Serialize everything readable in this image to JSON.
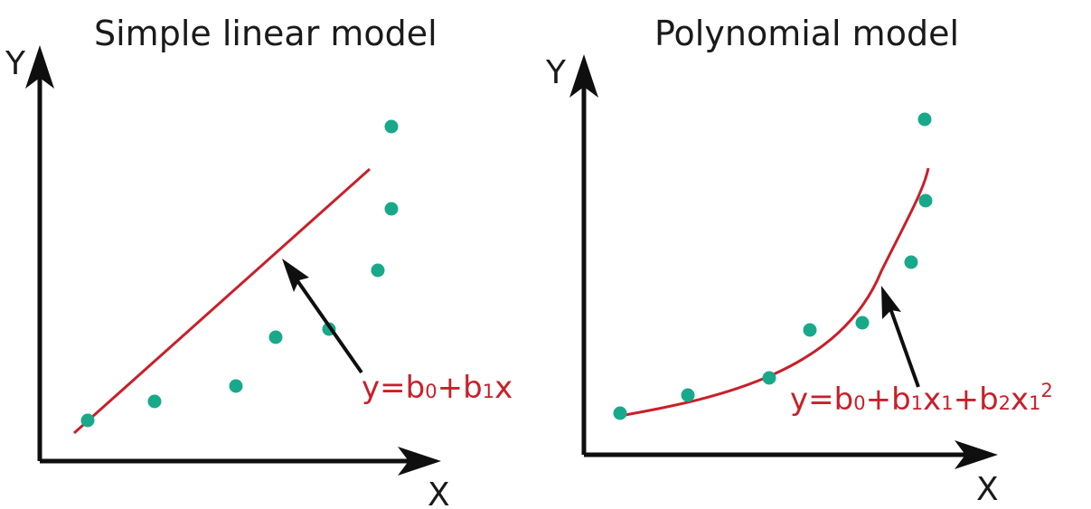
{
  "colors": {
    "axis": "#0f0f0f",
    "curve": "#c8202a",
    "point": "#18a98a",
    "text": "#1a1a1a"
  },
  "panels": [
    {
      "title": "Simple linear model",
      "x_label": "X",
      "y_label": "Y",
      "equation": {
        "y": "y",
        "eq": "=",
        "b0": "b",
        "b0_sub": "0",
        "plus1": "+",
        "b1": "b",
        "b1_sub": "1",
        "x": "x"
      }
    },
    {
      "title": "Polynomial model",
      "x_label": "X",
      "y_label": "Y",
      "equation": {
        "y": "y",
        "eq": "=",
        "b0": "b",
        "b0_sub": "0",
        "plus1": "+",
        "b1": "b",
        "b1_sub": "1",
        "x1": "x",
        "x1_sub": "1",
        "plus2": "+",
        "b2": "b",
        "b2_sub": "2",
        "x2": "x",
        "x2_sub": "1",
        "x2_sup": "2"
      }
    }
  ]
}
